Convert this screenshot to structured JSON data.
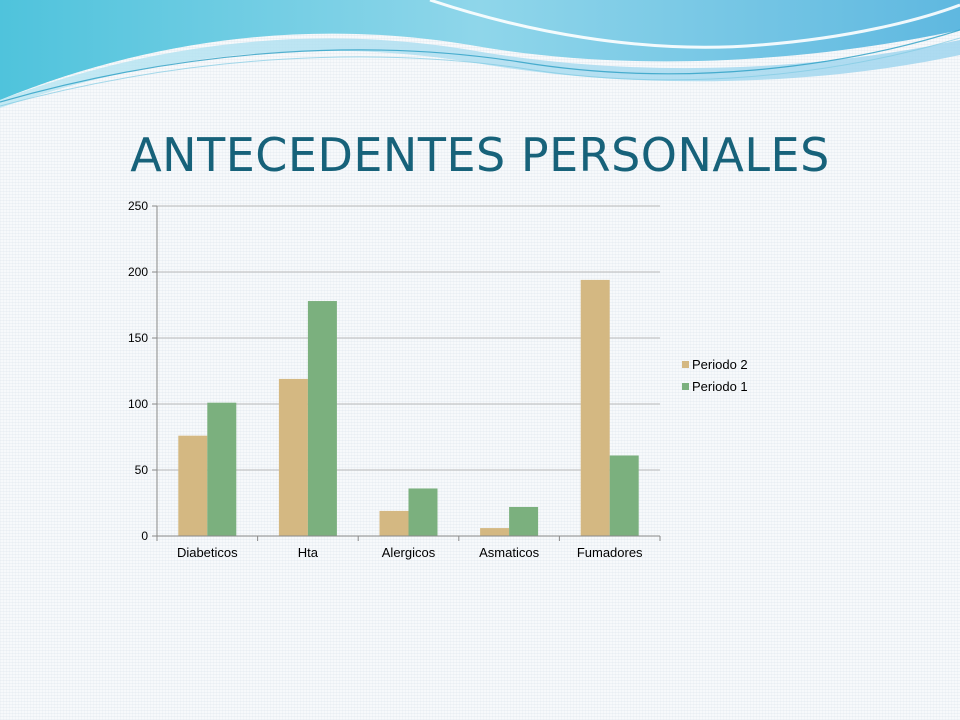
{
  "slide": {
    "title": "ANTECEDENTES PERSONALES"
  },
  "chart_data": {
    "type": "bar",
    "categories": [
      "Diabeticos",
      "Hta",
      "Alergicos",
      "Asmaticos",
      "Fumadores"
    ],
    "series": [
      {
        "name": "Periodo 2",
        "color": "#d4b882",
        "values": [
          76,
          119,
          19,
          6,
          194
        ]
      },
      {
        "name": "Periodo 1",
        "color": "#7bb07e",
        "values": [
          101,
          178,
          36,
          22,
          61
        ]
      }
    ],
    "ylim": [
      0,
      250
    ],
    "yticks": [
      "0",
      "50",
      "100",
      "150",
      "200",
      "250"
    ],
    "grid": true,
    "legend": "right",
    "title": "",
    "xlabel": "",
    "ylabel": ""
  }
}
